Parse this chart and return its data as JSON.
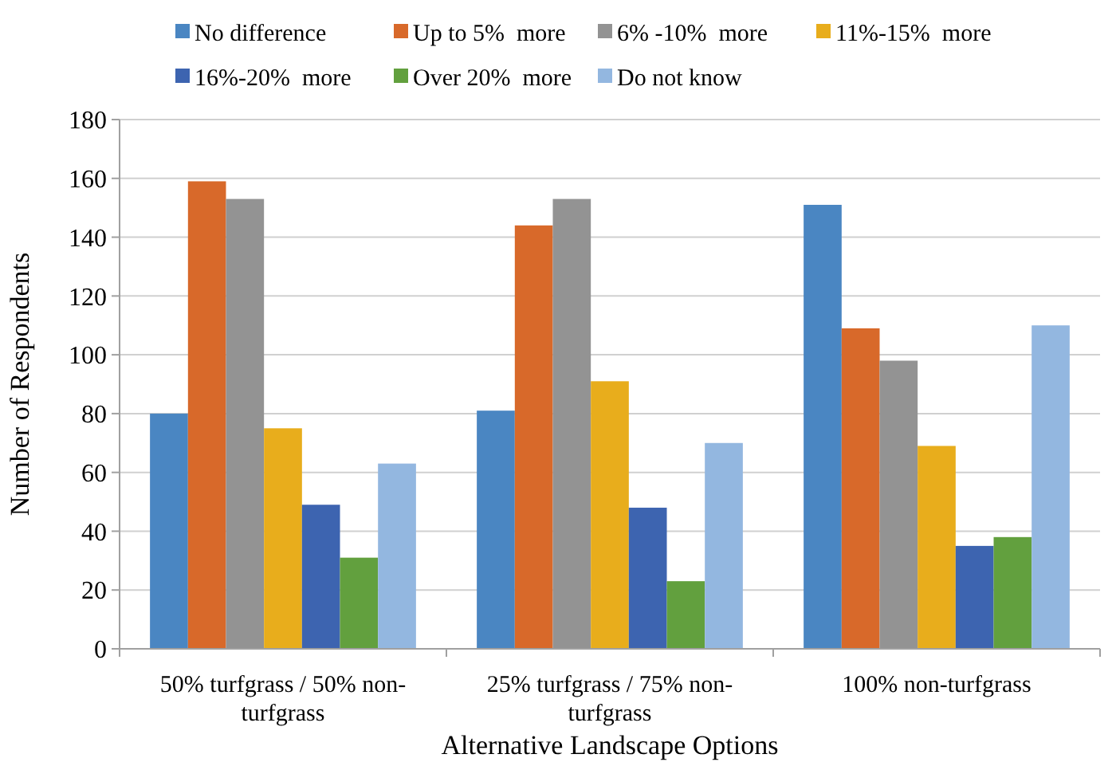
{
  "chart_data": {
    "type": "bar",
    "xlabel": "Alternative Landscape Options",
    "ylabel": "Number of Respondents",
    "categories": [
      "50% turfgrass / 50% non-turfgrass",
      "25% turfgrass / 75% non-turfgrass",
      "100% non-turfgrass"
    ],
    "series": [
      {
        "name": "No difference",
        "color": "#4a86c2",
        "values": [
          80,
          81,
          151
        ]
      },
      {
        "name": "Up to 5%  more",
        "color": "#d8692a",
        "values": [
          159,
          144,
          109
        ]
      },
      {
        "name": "6% -10%  more",
        "color": "#939393",
        "values": [
          153,
          153,
          98
        ]
      },
      {
        "name": "11%-15%  more",
        "color": "#e8ad1c",
        "values": [
          75,
          91,
          69
        ]
      },
      {
        "name": "16%-20%  more",
        "color": "#3d64b0",
        "values": [
          49,
          48,
          35
        ]
      },
      {
        "name": "Over 20%  more",
        "color": "#62a03e",
        "values": [
          31,
          23,
          38
        ]
      },
      {
        "name": "Do not know",
        "color": "#93b7e0",
        "values": [
          63,
          70,
          110
        ]
      }
    ],
    "ylim": [
      0,
      180
    ],
    "yticks": [
      0,
      20,
      40,
      60,
      80,
      100,
      120,
      140,
      160,
      180
    ],
    "grid": "y",
    "legend": "top"
  }
}
